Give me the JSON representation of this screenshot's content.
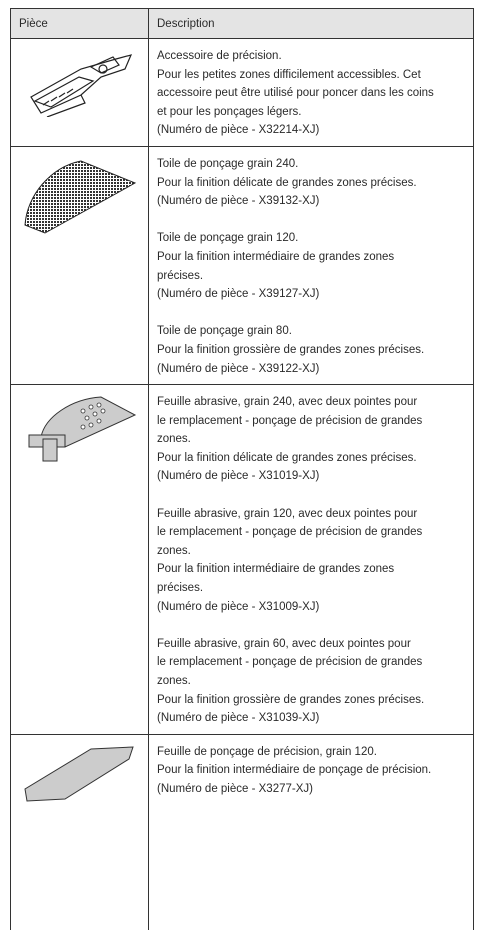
{
  "header": {
    "columns": [
      "Pièce",
      "Description"
    ]
  },
  "rows": [
    {
      "paragraphs": [
        [
          "Accessoire de précision.",
          "Pour les petites zones difficilement accessibles. Cet",
          "accessoire peut être utilisé pour poncer dans les coins",
          "et pour les ponçages légers.",
          "(Numéro de pièce - X32214-XJ)"
        ]
      ]
    },
    {
      "paragraphs": [
        [
          "Toile de ponçage grain 240.",
          "Pour la finition délicate de grandes zones précises.",
          "(Numéro de pièce - X39132-XJ)"
        ],
        [
          "Toile de ponçage grain 120.",
          "Pour la finition intermédiaire de grandes zones",
          "précises.",
          "(Numéro de pièce - X39127-XJ)"
        ],
        [
          "Toile de ponçage grain 80.",
          "Pour la finition grossière de grandes zones précises.",
          "(Numéro de pièce - X39122-XJ)"
        ]
      ]
    },
    {
      "paragraphs": [
        [
          "Feuille abrasive, grain 240, avec deux pointes pour",
          "le remplacement - ponçage de précision de grandes",
          "zones.",
          "Pour la finition délicate de grandes zones précises.",
          "(Numéro de pièce - X31019-XJ)"
        ],
        [
          "Feuille abrasive, grain 120, avec deux pointes pour",
          "le remplacement - ponçage de précision de grandes",
          "zones.",
          "Pour la finition intermédiaire de grandes zones",
          "précises.",
          "(Numéro de pièce - X31009-XJ)"
        ],
        [
          "Feuille abrasive, grain 60, avec deux pointes pour",
          "le remplacement - ponçage de précision de grandes",
          "zones.",
          "Pour la finition grossière de grandes zones précises.",
          "(Numéro de pièce - X31039-XJ)"
        ]
      ]
    },
    {
      "paragraphs": [
        [
          "Feuille de ponçage de précision, grain 120.",
          "Pour la finition intermédiaire de ponçage de précision.",
          "(Numéro de pièce - X3277-XJ)"
        ]
      ]
    }
  ]
}
